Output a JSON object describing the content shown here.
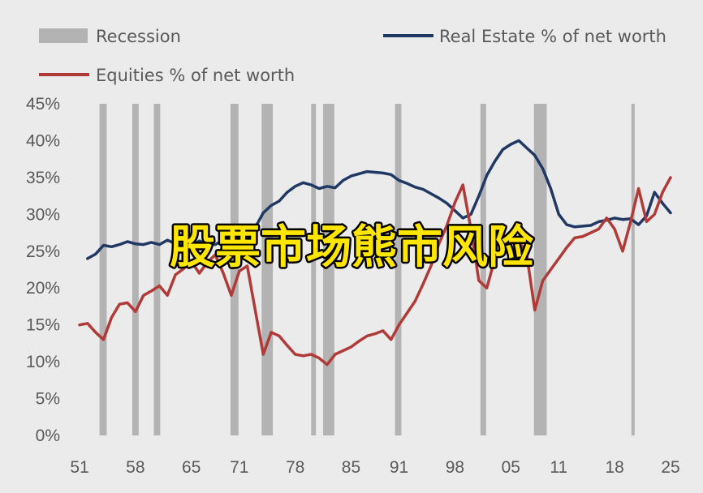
{
  "overlay_text": "股票市场熊市风险",
  "chart_data": {
    "type": "line",
    "title": "",
    "xlabel": "",
    "ylabel": "",
    "xlim": [
      1951,
      2025
    ],
    "ylim": [
      0,
      45
    ],
    "x_ticks": [
      1951,
      1958,
      1965,
      1971,
      1978,
      1985,
      1991,
      1998,
      2005,
      2011,
      2018,
      2025
    ],
    "x_tick_labels": [
      "51",
      "58",
      "65",
      "71",
      "78",
      "85",
      "91",
      "98",
      "05",
      "11",
      "18",
      "25"
    ],
    "y_ticks": [
      0,
      5,
      10,
      15,
      20,
      25,
      30,
      35,
      40,
      45
    ],
    "y_tick_labels": [
      "0%",
      "5%",
      "10%",
      "15%",
      "20%",
      "25%",
      "30%",
      "35%",
      "40%",
      "45%"
    ],
    "grid": false,
    "legend": [
      {
        "label": "Recession",
        "kind": "band",
        "color": "#b3b3b3"
      },
      {
        "label": "Real Estate % of net worth",
        "kind": "line",
        "color": "#1f3864"
      },
      {
        "label": "Equities % of net worth",
        "kind": "line",
        "color": "#b03a38"
      }
    ],
    "recessions": [
      [
        1953.5,
        1954.4
      ],
      [
        1957.6,
        1958.4
      ],
      [
        1960.3,
        1961.1
      ],
      [
        1969.9,
        1970.9
      ],
      [
        1973.8,
        1975.2
      ],
      [
        1980.0,
        1980.6
      ],
      [
        1981.5,
        1982.9
      ],
      [
        1990.5,
        1991.3
      ],
      [
        2001.2,
        2001.9
      ],
      [
        2007.9,
        2009.5
      ],
      [
        2020.1,
        2020.4
      ]
    ],
    "series": [
      {
        "name": "Real Estate % of net worth",
        "color": "#1f3864",
        "x": [
          1952,
          1953,
          1954,
          1955,
          1956,
          1957,
          1958,
          1959,
          1960,
          1961,
          1962,
          1963,
          1964,
          1965,
          1966,
          1967,
          1968,
          1969,
          1970,
          1971,
          1972,
          1973,
          1974,
          1975,
          1976,
          1977,
          1978,
          1979,
          1980,
          1981,
          1982,
          1983,
          1984,
          1985,
          1986,
          1987,
          1988,
          1989,
          1990,
          1991,
          1992,
          1993,
          1994,
          1995,
          1996,
          1997,
          1998,
          1999,
          2000,
          2001,
          2002,
          2003,
          2004,
          2005,
          2006,
          2007,
          2008,
          2009,
          2010,
          2011,
          2012,
          2013,
          2014,
          2015,
          2016,
          2017,
          2018,
          2019,
          2020,
          2021,
          2022,
          2023,
          2024,
          2025
        ],
        "values": [
          24.0,
          24.6,
          25.8,
          25.6,
          25.9,
          26.3,
          26.0,
          25.9,
          26.2,
          25.9,
          26.5,
          26.0,
          25.9,
          25.8,
          26.4,
          26.0,
          25.9,
          26.5,
          27.3,
          27.0,
          26.8,
          28.2,
          30.2,
          31.2,
          31.8,
          33.0,
          33.8,
          34.3,
          34.0,
          33.5,
          33.8,
          33.6,
          34.6,
          35.2,
          35.5,
          35.8,
          35.7,
          35.6,
          35.4,
          34.6,
          34.2,
          33.7,
          33.4,
          32.8,
          32.2,
          31.5,
          30.5,
          29.5,
          30.0,
          32.5,
          35.3,
          37.2,
          38.8,
          39.5,
          40.0,
          39.0,
          38.0,
          36.2,
          33.5,
          30.0,
          28.6,
          28.3,
          28.4,
          28.5,
          29.0,
          29.2,
          29.5,
          29.3,
          29.4,
          28.6,
          29.8,
          33.0,
          31.5,
          30.2
        ]
      },
      {
        "name": "Equities % of net worth",
        "color": "#b03a38",
        "x": [
          1951,
          1952,
          1953,
          1954,
          1955,
          1956,
          1957,
          1958,
          1959,
          1960,
          1961,
          1962,
          1963,
          1964,
          1965,
          1966,
          1967,
          1968,
          1969,
          1970,
          1971,
          1972,
          1973,
          1974,
          1975,
          1976,
          1977,
          1978,
          1979,
          1980,
          1981,
          1982,
          1983,
          1984,
          1985,
          1986,
          1987,
          1988,
          1989,
          1990,
          1991,
          1992,
          1993,
          1994,
          1995,
          1996,
          1997,
          1998,
          1999,
          2000,
          2001,
          2002,
          2003,
          2004,
          2005,
          2006,
          2007,
          2008,
          2009,
          2010,
          2011,
          2012,
          2013,
          2014,
          2015,
          2016,
          2017,
          2018,
          2019,
          2020,
          2021,
          2022,
          2023,
          2024,
          2025
        ],
        "values": [
          15.0,
          15.2,
          14.0,
          13.0,
          16.0,
          17.8,
          18.0,
          16.8,
          19.0,
          19.6,
          20.3,
          19.0,
          21.8,
          22.6,
          23.6,
          22.0,
          23.5,
          24.5,
          22.0,
          19.0,
          22.3,
          23.0,
          17.0,
          11.0,
          14.0,
          13.5,
          12.2,
          11.0,
          10.8,
          11.0,
          10.5,
          9.6,
          11.0,
          11.5,
          12.0,
          12.8,
          13.5,
          13.8,
          14.2,
          13.0,
          15.0,
          16.6,
          18.2,
          20.5,
          23.0,
          26.0,
          28.5,
          31.6,
          34.0,
          28.0,
          21.0,
          20.0,
          24.0,
          25.0,
          26.0,
          26.5,
          24.5,
          17.0,
          21.0,
          22.5,
          24.0,
          25.5,
          26.8,
          27.0,
          27.5,
          28.0,
          29.5,
          28.0,
          25.0,
          29.0,
          33.5,
          29.0,
          30.0,
          33.0,
          35.0
        ]
      }
    ]
  }
}
